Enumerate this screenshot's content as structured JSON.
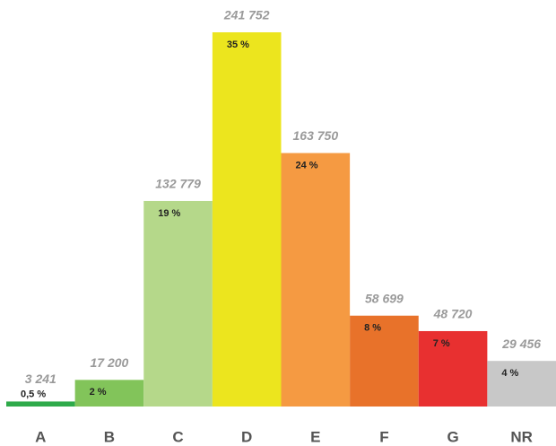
{
  "chart_data": {
    "type": "bar",
    "categories": [
      "A",
      "B",
      "C",
      "D",
      "E",
      "F",
      "G",
      "NR"
    ],
    "values": [
      3241,
      17200,
      132779,
      241752,
      163750,
      58699,
      48720,
      29456
    ],
    "value_labels": [
      "3 241",
      "17 200",
      "132 779",
      "241 752",
      "163 750",
      "58 699",
      "48 720",
      "29 456"
    ],
    "shares": [
      0.5,
      2,
      19,
      35,
      24,
      8,
      7,
      4
    ],
    "share_labels": [
      "0,5 %",
      "2 %",
      "19 %",
      "35 %",
      "24 %",
      "8 %",
      "7 %",
      "4 %"
    ],
    "colors": [
      "#2eaa4a",
      "#82c45a",
      "#b5d88a",
      "#ece51e",
      "#f59a42",
      "#e8722a",
      "#e83030",
      "#c8c8c8"
    ]
  }
}
